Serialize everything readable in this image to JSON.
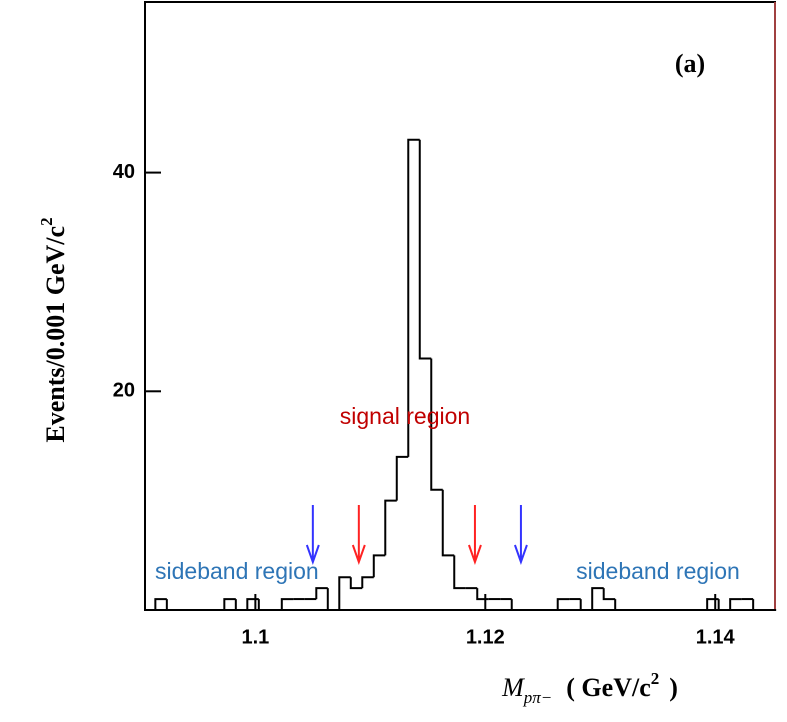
{
  "chart_data": {
    "type": "histogram",
    "panel_label": "(a)",
    "ylabel": "Events/0.001 GeV/c",
    "ylabel_sup": "2",
    "xlabel_symbol": "M",
    "xlabel_sub": "pπ−",
    "xlabel_unit": "( GeV/c",
    "xlabel_sup": "2",
    "xlabel_close": ")",
    "bins": [
      1.0913,
      1.0923,
      1.0933,
      1.0943,
      1.0953,
      1.0963,
      1.0973,
      1.0983,
      1.0993,
      1.1003,
      1.1013,
      1.1023,
      1.1033,
      1.1043,
      1.1053,
      1.1063,
      1.1073,
      1.1083,
      1.1093,
      1.1103,
      1.1113,
      1.1123,
      1.1133,
      1.1143,
      1.1153,
      1.1163,
      1.1173,
      1.1183,
      1.1193,
      1.1203,
      1.1213,
      1.1223,
      1.1233,
      1.1243,
      1.1253,
      1.1263,
      1.1273,
      1.1283,
      1.1293,
      1.1303,
      1.1313,
      1.1323,
      1.1333,
      1.1343,
      1.1353,
      1.1363,
      1.1373,
      1.1383,
      1.1393,
      1.1403,
      1.1413,
      1.1423,
      1.1433,
      1.1443,
      1.1453
    ],
    "values": [
      1,
      0,
      0,
      0,
      0,
      0,
      1,
      0,
      1,
      0,
      0,
      1,
      1,
      1,
      2,
      0,
      3,
      2,
      3,
      5,
      10,
      14,
      43,
      23,
      11,
      5,
      2,
      2,
      1,
      1,
      1,
      0,
      0,
      0,
      0,
      1,
      1,
      0,
      2,
      1,
      0,
      0,
      0,
      0,
      0,
      0,
      0,
      0,
      1,
      0,
      1,
      1,
      0,
      0
    ],
    "color": "#000000",
    "xlim": [
      1.0904,
      1.1452
    ],
    "ylim": [
      0,
      55.6
    ],
    "xticks": [
      1.1,
      1.12,
      1.14
    ],
    "yticks": [
      20,
      40
    ],
    "arrows": [
      {
        "x": 1.105,
        "color": "#3333ff"
      },
      {
        "x": 1.109,
        "color": "#ff2222"
      },
      {
        "x": 1.1191,
        "color": "#ff2222"
      },
      {
        "x": 1.1231,
        "color": "#3333ff"
      }
    ],
    "annotations": [
      {
        "text": "signal region",
        "color": "#c00000"
      },
      {
        "text": "sideband region",
        "color": "#2e75b6"
      },
      {
        "text": "sideband region",
        "color": "#2e75b6"
      }
    ]
  }
}
